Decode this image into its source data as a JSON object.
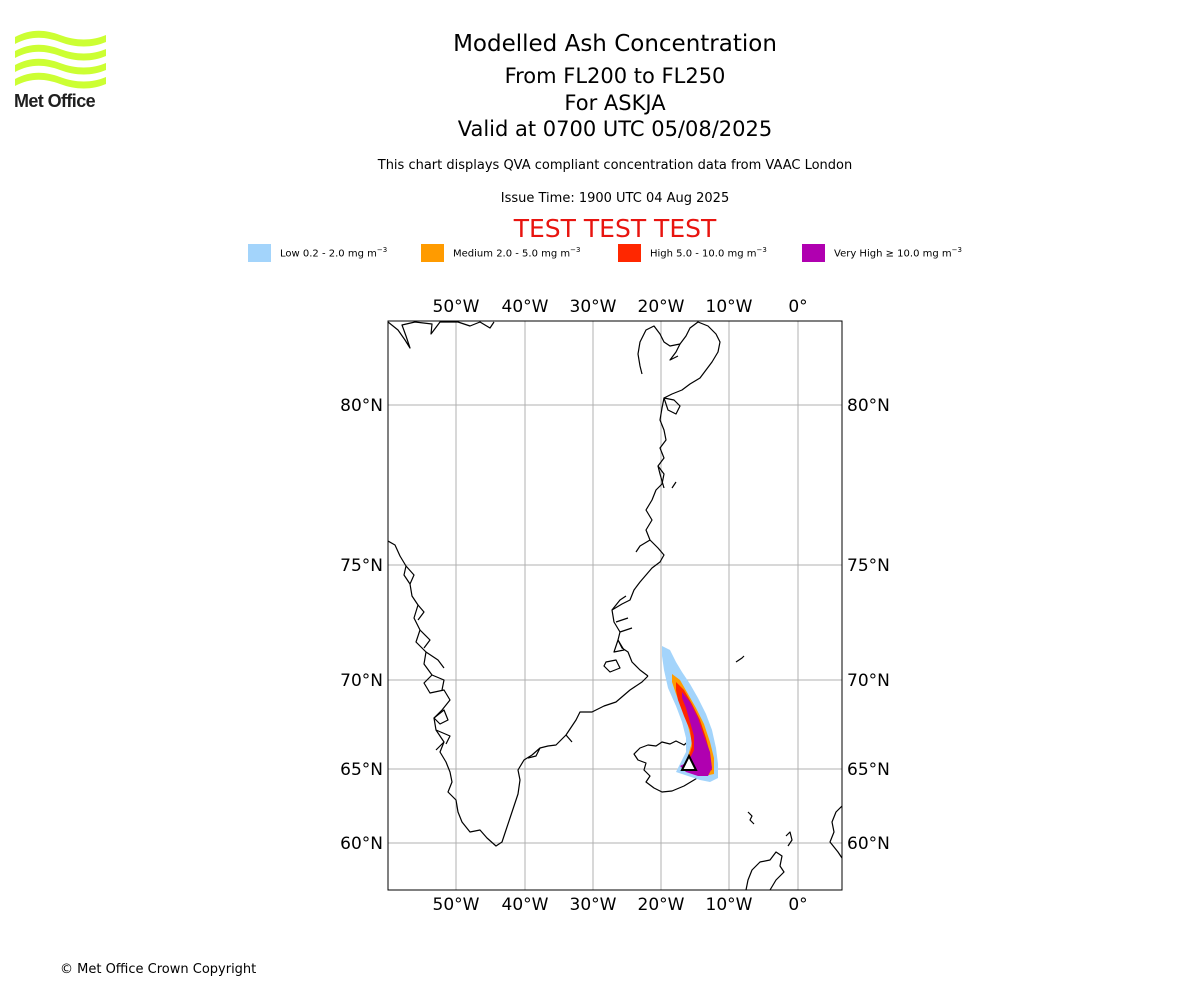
{
  "brand": {
    "logo_text": "Met Office",
    "logo_color": "#ccff33"
  },
  "title": {
    "line1": "Modelled Ash Concentration",
    "line2": "From FL200 to FL250",
    "line3": "For ASKJA",
    "line4": "Valid at 0700 UTC 05/08/2025"
  },
  "subtitle": "This chart displays QVA compliant concentration data from VAAC London",
  "issue_time": "Issue Time: 1900 UTC 04 Aug 2025",
  "test_banner": "TEST TEST TEST",
  "legend": [
    {
      "name": "Low",
      "range": "0.2 - 2.0 mg m",
      "exp": "−3",
      "color": "#a3d4fb"
    },
    {
      "name": "Medium",
      "range": "2.0 - 5.0 mg m",
      "exp": "−3",
      "color": "#ff9b00"
    },
    {
      "name": "High",
      "range": "5.0 - 10.0 mg m",
      "exp": "−3",
      "color": "#ff2700"
    },
    {
      "name": "Very High",
      "range": "≥  10.0 mg m",
      "exp": "−3",
      "color": "#b000b0"
    }
  ],
  "map": {
    "lon_ticks": [
      "50°W",
      "40°W",
      "30°W",
      "20°W",
      "10°W",
      "0°"
    ],
    "lat_ticks": [
      "80°N",
      "75°N",
      "70°N",
      "65°N",
      "60°N"
    ],
    "volcano": "ASKJA",
    "grid": true
  },
  "copyright": "© Met Office Crown Copyright"
}
